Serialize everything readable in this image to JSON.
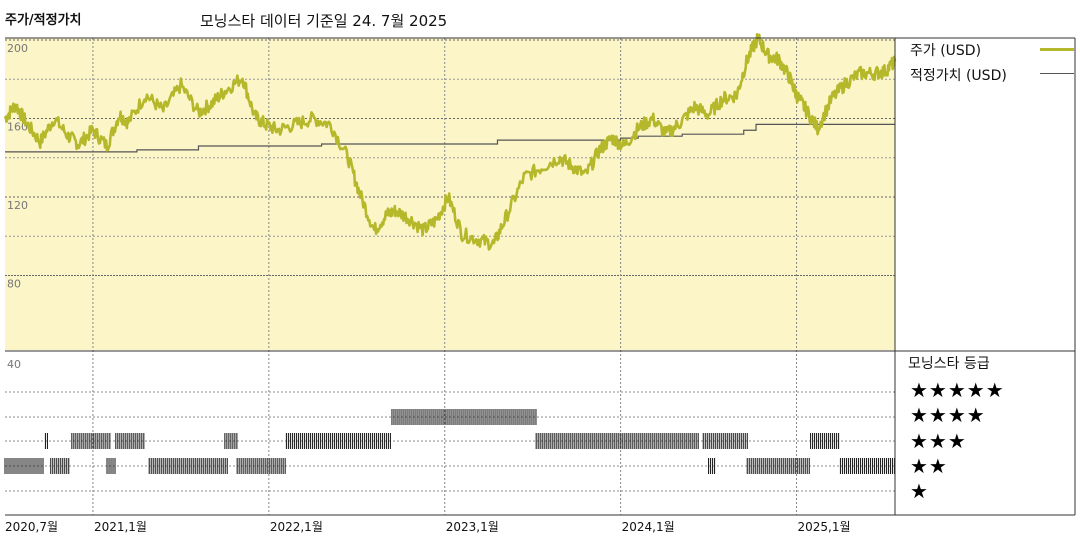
{
  "header": {
    "title": "주가/적정가치",
    "subtitle": "모닝스타 데이터 기준일 24. 7월 2025"
  },
  "legend": {
    "price_label": "주가 (USD)",
    "fair_label": "적정가치 (USD)",
    "rating_title": "모닝스타 등급",
    "stars": [
      "★★★★★",
      "★★★★",
      "★★★",
      "★★",
      "★"
    ]
  },
  "colors": {
    "price": "#b5b82a",
    "fair": "#555555",
    "panel_bg": "#fbf5c8",
    "rating_bar": "#222222"
  },
  "chart_data": {
    "type": "line",
    "xlabel": "",
    "ylabel": "",
    "x_ticks": [
      "2020,7월",
      "2021,1월",
      "2022,1월",
      "2023,1월",
      "2024,1월",
      "2025,1월"
    ],
    "x_tick_dates": [
      2020.5,
      2021.0,
      2022.0,
      2023.0,
      2024.0,
      2025.0
    ],
    "xlim": [
      2020.5,
      2025.56
    ],
    "ylim": [
      40,
      210
    ],
    "y_ticks": [
      40,
      80,
      120,
      160,
      200
    ],
    "grid": true,
    "legend_position": "right",
    "series": [
      {
        "name": "주가 (USD)",
        "x": [
          2020.5,
          2020.56,
          2020.62,
          2020.7,
          2020.78,
          2020.86,
          2020.92,
          2021.0,
          2021.08,
          2021.15,
          2021.2,
          2021.3,
          2021.4,
          2021.5,
          2021.6,
          2021.68,
          2021.75,
          2021.85,
          2021.92,
          2021.98,
          2022.05,
          2022.15,
          2022.25,
          2022.35,
          2022.45,
          2022.52,
          2022.6,
          2022.67,
          2022.72,
          2022.8,
          2022.88,
          2022.95,
          2023.02,
          2023.1,
          2023.2,
          2023.28,
          2023.35,
          2023.45,
          2023.55,
          2023.65,
          2023.72,
          2023.8,
          2023.88,
          2023.95,
          2024.02,
          2024.1,
          2024.18,
          2024.26,
          2024.34,
          2024.42,
          2024.5,
          2024.58,
          2024.66,
          2024.72,
          2024.78,
          2024.84,
          2024.9,
          2024.96,
          2025.0,
          2025.05,
          2025.12,
          2025.2,
          2025.28,
          2025.36,
          2025.44,
          2025.5,
          2025.56
        ],
        "values": [
          160,
          167,
          158,
          148,
          160,
          151,
          147,
          154,
          146,
          162,
          158,
          172,
          164,
          177,
          163,
          168,
          174,
          181,
          161,
          157,
          154,
          157,
          160,
          157,
          140,
          121,
          103,
          111,
          113,
          109,
          103,
          108,
          120,
          101,
          98,
          96,
          110,
          130,
          135,
          140,
          136,
          131,
          144,
          150,
          146,
          155,
          160,
          152,
          158,
          166,
          162,
          170,
          172,
          190,
          201,
          192,
          190,
          181,
          172,
          165,
          155,
          170,
          178,
          183,
          183,
          184,
          189
        ]
      },
      {
        "name": "적정가치 (USD)",
        "x": [
          2020.5,
          2021.0,
          2021.08,
          2021.25,
          2021.6,
          2022.3,
          2023.3,
          2024.0,
          2024.1,
          2024.25,
          2024.35,
          2024.52,
          2024.7,
          2024.75,
          2024.77,
          2025.56
        ],
        "values": [
          143,
          143,
          143,
          144,
          146,
          147,
          149,
          150,
          151,
          151,
          152,
          152,
          154,
          154,
          157,
          157
        ]
      }
    ],
    "rating_bands": {
      "levels": [
        5,
        4,
        3,
        2,
        1
      ],
      "segments": [
        {
          "stars": 2,
          "from": 2020.5,
          "to": 2020.72
        },
        {
          "stars": 3,
          "from": 2020.73,
          "to": 2020.75
        },
        {
          "stars": 2,
          "from": 2020.76,
          "to": 2020.87
        },
        {
          "stars": 3,
          "from": 2020.88,
          "to": 2021.1
        },
        {
          "stars": 2,
          "from": 2021.08,
          "to": 2021.13
        },
        {
          "stars": 3,
          "from": 2021.13,
          "to": 2021.3
        },
        {
          "stars": 2,
          "from": 2021.32,
          "to": 2021.77
        },
        {
          "stars": 3,
          "from": 2021.75,
          "to": 2021.82
        },
        {
          "stars": 2,
          "from": 2021.82,
          "to": 2022.1
        },
        {
          "stars": 3,
          "from": 2022.1,
          "to": 2022.7
        },
        {
          "stars": 4,
          "from": 2022.7,
          "to": 2023.52
        },
        {
          "stars": 3,
          "from": 2023.52,
          "to": 2024.45
        },
        {
          "stars": 3,
          "from": 2024.47,
          "to": 2024.73
        },
        {
          "stars": 2,
          "from": 2024.5,
          "to": 2024.54
        },
        {
          "stars": 2,
          "from": 2024.72,
          "to": 2025.08
        },
        {
          "stars": 3,
          "from": 2025.08,
          "to": 2025.25
        },
        {
          "stars": 2,
          "from": 2025.25,
          "to": 2025.56
        }
      ]
    }
  }
}
